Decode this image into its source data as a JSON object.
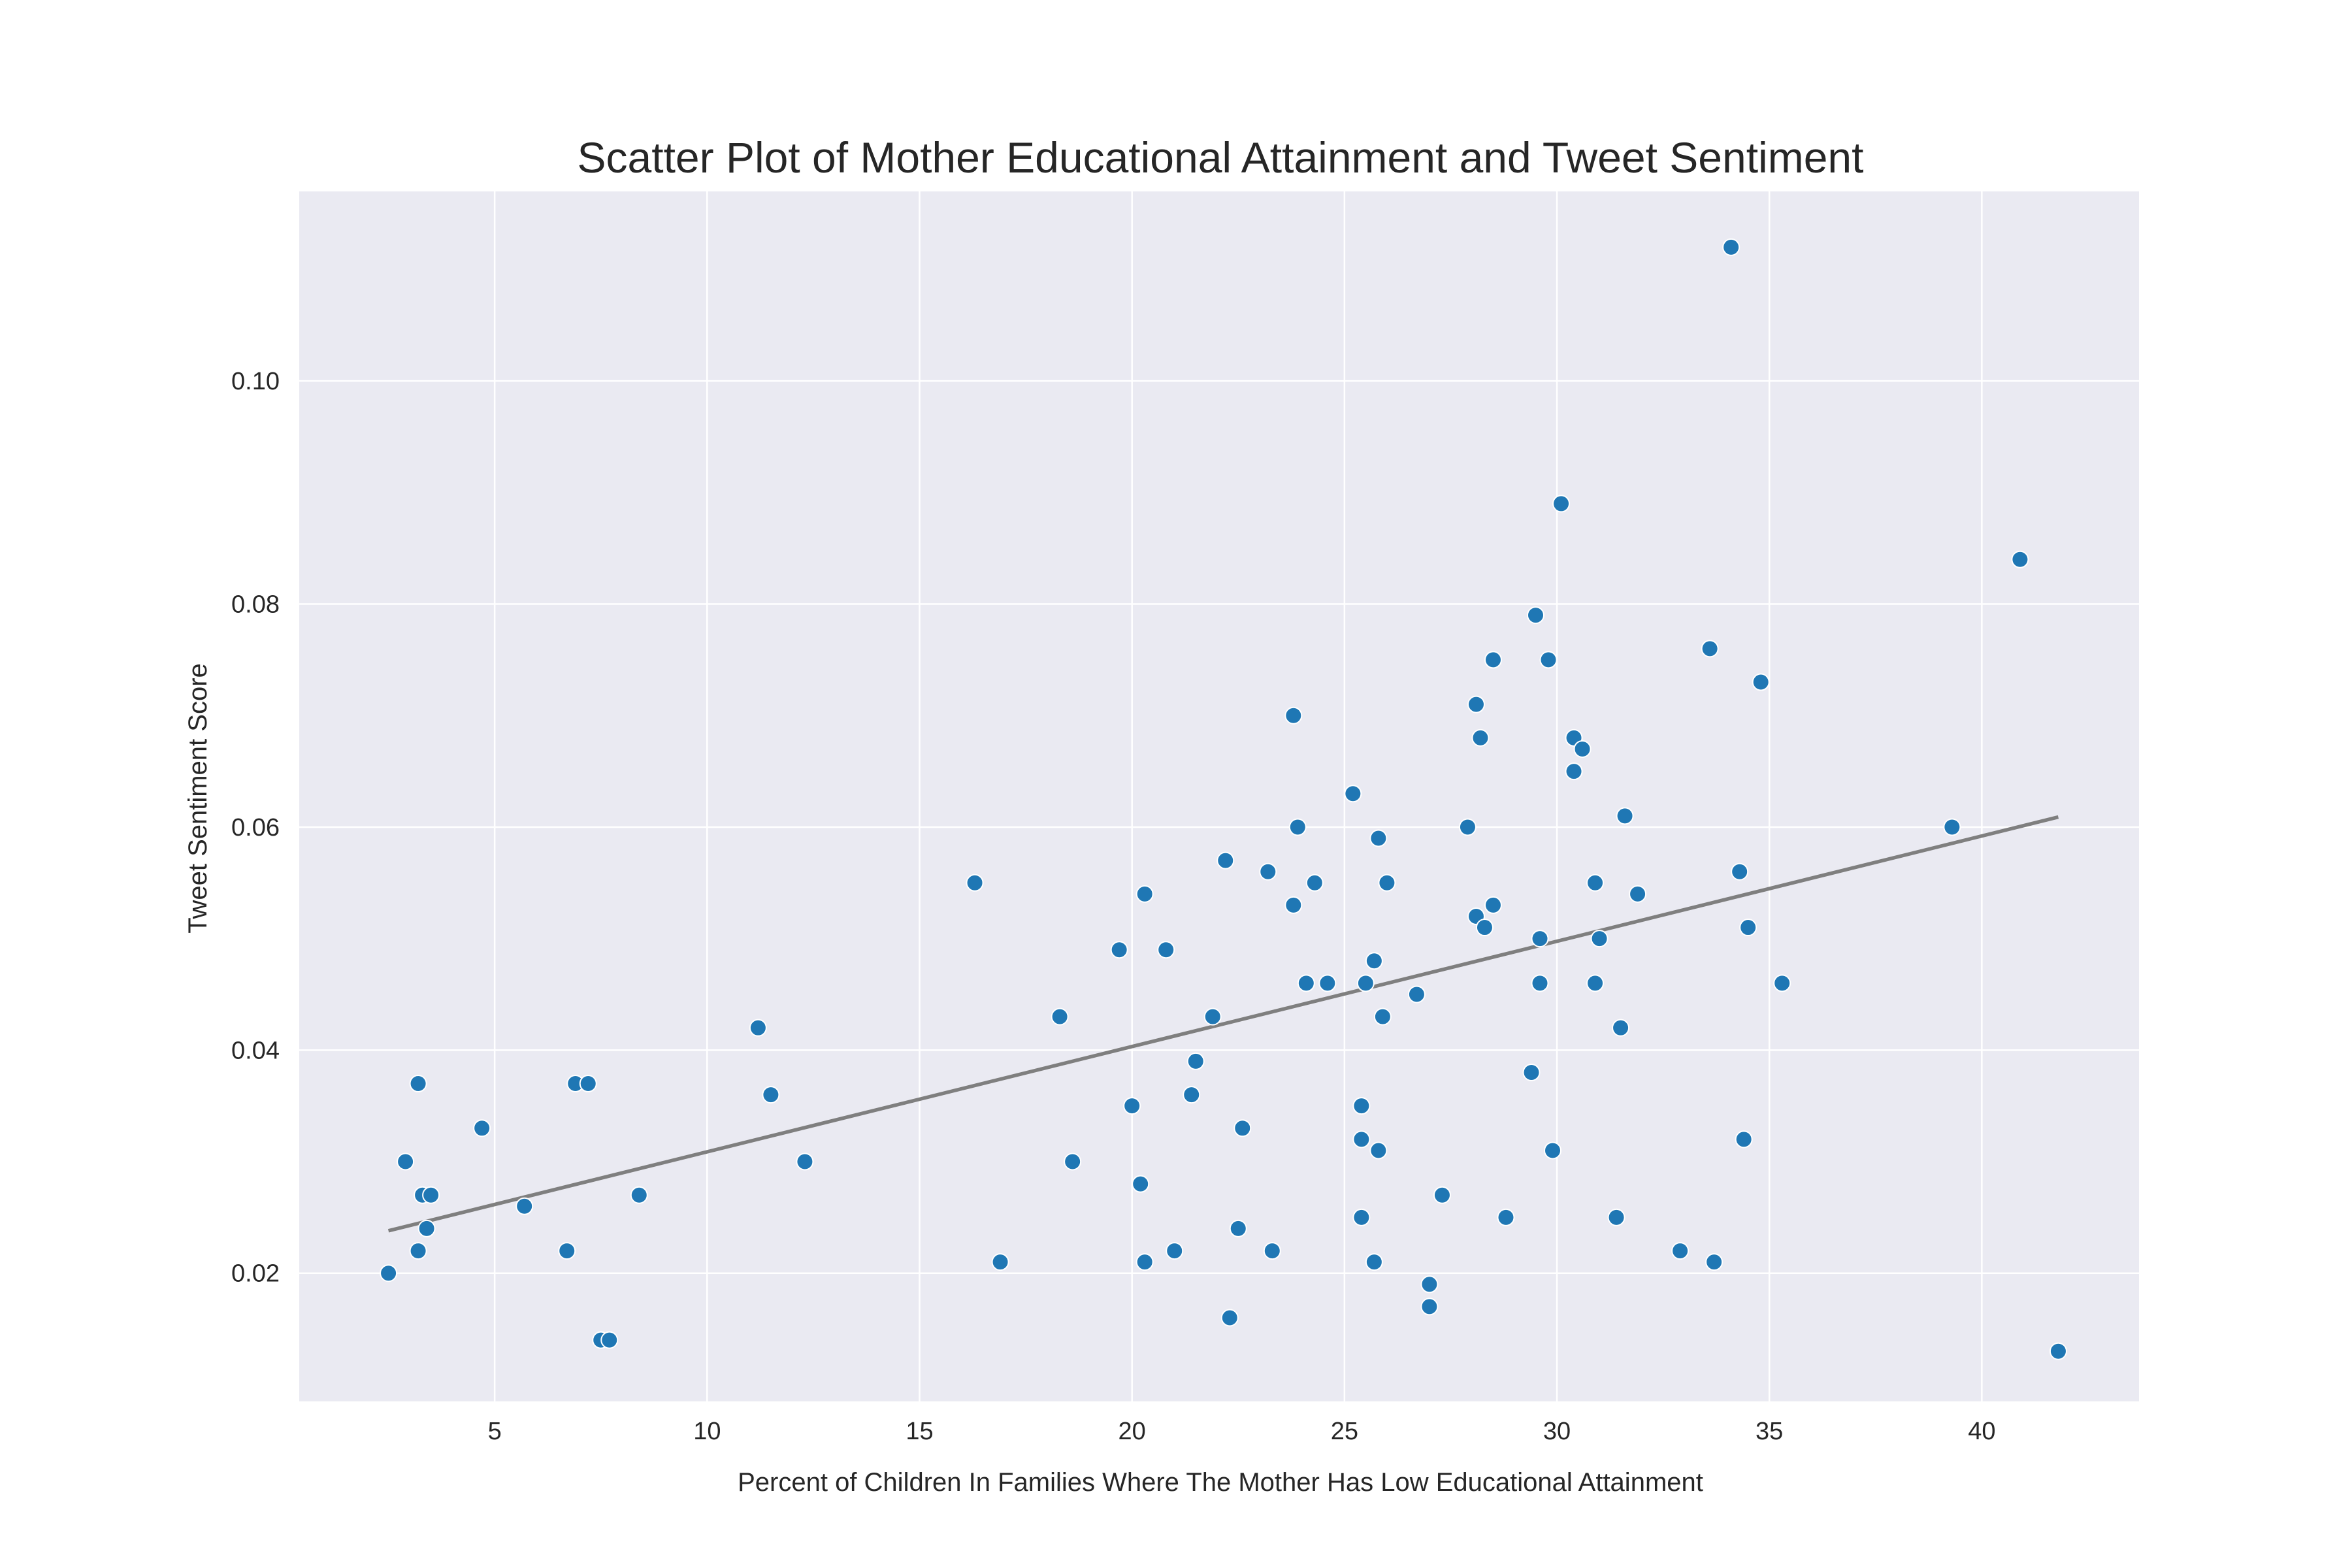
{
  "chart_data": {
    "type": "scatter",
    "title": "Scatter Plot of Mother Educational Attainment and Tweet Sentiment",
    "xlabel": "Percent of Children In Families Where The Mother Has Low Educational Attainment",
    "ylabel": "Tweet Sentiment Score",
    "xlim": [
      0.4,
      43.7
    ],
    "ylim": [
      0.0085,
      0.117
    ],
    "xticks": [
      5,
      10,
      15,
      20,
      25,
      30,
      35,
      40
    ],
    "yticks": [
      0.02,
      0.04,
      0.06,
      0.08,
      0.1
    ],
    "ytick_labels": [
      "0.02",
      "0.04",
      "0.06",
      "0.08",
      "0.10"
    ],
    "grid": true,
    "points": [
      {
        "x": 2.5,
        "y": 0.02
      },
      {
        "x": 2.9,
        "y": 0.03
      },
      {
        "x": 3.2,
        "y": 0.037
      },
      {
        "x": 3.2,
        "y": 0.022
      },
      {
        "x": 3.3,
        "y": 0.027
      },
      {
        "x": 3.4,
        "y": 0.024
      },
      {
        "x": 3.5,
        "y": 0.027
      },
      {
        "x": 4.7,
        "y": 0.033
      },
      {
        "x": 5.7,
        "y": 0.026
      },
      {
        "x": 6.7,
        "y": 0.022
      },
      {
        "x": 6.9,
        "y": 0.037
      },
      {
        "x": 7.2,
        "y": 0.037
      },
      {
        "x": 7.5,
        "y": 0.014
      },
      {
        "x": 7.7,
        "y": 0.014
      },
      {
        "x": 8.4,
        "y": 0.027
      },
      {
        "x": 11.2,
        "y": 0.042
      },
      {
        "x": 11.5,
        "y": 0.036
      },
      {
        "x": 12.3,
        "y": 0.03
      },
      {
        "x": 16.3,
        "y": 0.055
      },
      {
        "x": 16.9,
        "y": 0.021
      },
      {
        "x": 18.3,
        "y": 0.043
      },
      {
        "x": 18.6,
        "y": 0.03
      },
      {
        "x": 19.7,
        "y": 0.049
      },
      {
        "x": 20.0,
        "y": 0.035
      },
      {
        "x": 20.2,
        "y": 0.028
      },
      {
        "x": 20.3,
        "y": 0.054
      },
      {
        "x": 20.3,
        "y": 0.021
      },
      {
        "x": 20.8,
        "y": 0.049
      },
      {
        "x": 21.0,
        "y": 0.022
      },
      {
        "x": 21.4,
        "y": 0.036
      },
      {
        "x": 21.5,
        "y": 0.039
      },
      {
        "x": 21.9,
        "y": 0.043
      },
      {
        "x": 22.2,
        "y": 0.057
      },
      {
        "x": 22.3,
        "y": 0.016
      },
      {
        "x": 22.5,
        "y": 0.024
      },
      {
        "x": 22.6,
        "y": 0.033
      },
      {
        "x": 23.2,
        "y": 0.056
      },
      {
        "x": 23.3,
        "y": 0.022
      },
      {
        "x": 23.8,
        "y": 0.053
      },
      {
        "x": 23.8,
        "y": 0.07
      },
      {
        "x": 23.9,
        "y": 0.06
      },
      {
        "x": 24.1,
        "y": 0.046
      },
      {
        "x": 24.3,
        "y": 0.055
      },
      {
        "x": 24.6,
        "y": 0.046
      },
      {
        "x": 25.2,
        "y": 0.063
      },
      {
        "x": 25.4,
        "y": 0.035
      },
      {
        "x": 25.4,
        "y": 0.025
      },
      {
        "x": 25.4,
        "y": 0.032
      },
      {
        "x": 25.5,
        "y": 0.046
      },
      {
        "x": 25.7,
        "y": 0.048
      },
      {
        "x": 25.7,
        "y": 0.021
      },
      {
        "x": 25.8,
        "y": 0.059
      },
      {
        "x": 25.8,
        "y": 0.031
      },
      {
        "x": 25.9,
        "y": 0.043
      },
      {
        "x": 26.0,
        "y": 0.055
      },
      {
        "x": 26.7,
        "y": 0.045
      },
      {
        "x": 27.0,
        "y": 0.019
      },
      {
        "x": 27.0,
        "y": 0.017
      },
      {
        "x": 27.3,
        "y": 0.027
      },
      {
        "x": 27.9,
        "y": 0.06
      },
      {
        "x": 28.1,
        "y": 0.071
      },
      {
        "x": 28.1,
        "y": 0.052
      },
      {
        "x": 28.2,
        "y": 0.068
      },
      {
        "x": 28.3,
        "y": 0.051
      },
      {
        "x": 28.5,
        "y": 0.075
      },
      {
        "x": 28.5,
        "y": 0.053
      },
      {
        "x": 28.8,
        "y": 0.025
      },
      {
        "x": 29.4,
        "y": 0.038
      },
      {
        "x": 29.5,
        "y": 0.079
      },
      {
        "x": 29.6,
        "y": 0.05
      },
      {
        "x": 29.6,
        "y": 0.046
      },
      {
        "x": 29.8,
        "y": 0.075
      },
      {
        "x": 29.9,
        "y": 0.031
      },
      {
        "x": 30.1,
        "y": 0.089
      },
      {
        "x": 30.4,
        "y": 0.068
      },
      {
        "x": 30.4,
        "y": 0.065
      },
      {
        "x": 30.6,
        "y": 0.067
      },
      {
        "x": 30.9,
        "y": 0.055
      },
      {
        "x": 30.9,
        "y": 0.046
      },
      {
        "x": 31.0,
        "y": 0.05
      },
      {
        "x": 31.4,
        "y": 0.025
      },
      {
        "x": 31.5,
        "y": 0.042
      },
      {
        "x": 31.6,
        "y": 0.061
      },
      {
        "x": 31.9,
        "y": 0.054
      },
      {
        "x": 32.9,
        "y": 0.022
      },
      {
        "x": 33.6,
        "y": 0.076
      },
      {
        "x": 33.7,
        "y": 0.021
      },
      {
        "x": 34.1,
        "y": 0.112
      },
      {
        "x": 34.3,
        "y": 0.056
      },
      {
        "x": 34.4,
        "y": 0.032
      },
      {
        "x": 34.5,
        "y": 0.051
      },
      {
        "x": 34.8,
        "y": 0.073
      },
      {
        "x": 35.3,
        "y": 0.046
      },
      {
        "x": 39.3,
        "y": 0.06
      },
      {
        "x": 40.9,
        "y": 0.084
      },
      {
        "x": 41.8,
        "y": 0.013
      }
    ],
    "trendline": [
      {
        "x": 2.5,
        "y": 0.0238
      },
      {
        "x": 41.8,
        "y": 0.0609
      }
    ],
    "colors": {
      "points": "#1f77b4",
      "trendline": "#7f7f7f",
      "plot_background": "#eaeaf2",
      "grid": "#ffffff"
    }
  }
}
